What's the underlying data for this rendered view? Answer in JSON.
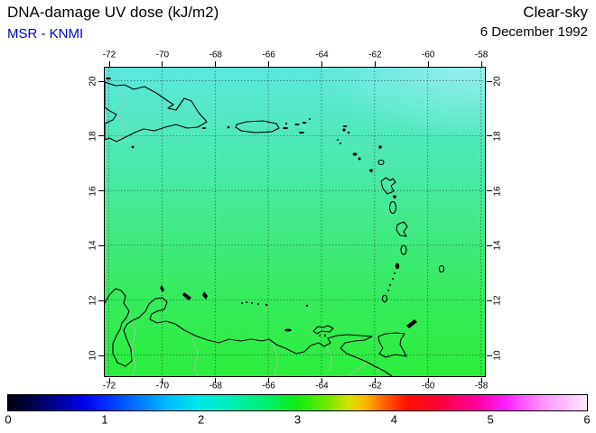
{
  "header": {
    "title": "DNA-damage UV dose (kJ/m2)",
    "source": "MSR - KNMI",
    "condition": "Clear-sky",
    "date": "6 December 1992"
  },
  "axes": {
    "lon_labels": [
      "-72",
      "-70",
      "-68",
      "-66",
      "-64",
      "-62",
      "-60",
      "-58"
    ],
    "lat_labels": [
      "20",
      "18",
      "16",
      "14",
      "12",
      "10"
    ]
  },
  "colorbar": {
    "tick_labels": [
      "0",
      "1",
      "2",
      "3",
      "4",
      "5",
      "6"
    ],
    "stops": [
      {
        "p": 0,
        "c": "#000010"
      },
      {
        "p": 3,
        "c": "#00003a"
      },
      {
        "p": 8,
        "c": "#000090"
      },
      {
        "p": 13,
        "c": "#0000e8"
      },
      {
        "p": 17,
        "c": "#0030ff"
      },
      {
        "p": 23,
        "c": "#0080ff"
      },
      {
        "p": 28,
        "c": "#00c0ff"
      },
      {
        "p": 33,
        "c": "#00e8e8"
      },
      {
        "p": 39,
        "c": "#00ecb0"
      },
      {
        "p": 45,
        "c": "#00ee6a"
      },
      {
        "p": 50,
        "c": "#10ee10"
      },
      {
        "p": 55,
        "c": "#70e800"
      },
      {
        "p": 59,
        "c": "#d8e000"
      },
      {
        "p": 62,
        "c": "#ffb000"
      },
      {
        "p": 65,
        "c": "#ff6000"
      },
      {
        "p": 69,
        "c": "#ff1000"
      },
      {
        "p": 75,
        "c": "#ff0040"
      },
      {
        "p": 81,
        "c": "#ff00a0"
      },
      {
        "p": 86,
        "c": "#ff20ff"
      },
      {
        "p": 92,
        "c": "#ff90ff"
      },
      {
        "p": 100,
        "c": "#ffe8ff"
      }
    ]
  },
  "map": {
    "field_gradient": [
      {
        "p": 0,
        "c": "#5be7da"
      },
      {
        "p": 35,
        "c": "#49e9a8"
      },
      {
        "p": 70,
        "c": "#37ec62"
      },
      {
        "p": 100,
        "c": "#2bee3c"
      }
    ]
  },
  "colors": {
    "source_text": "#0000cc",
    "coastline": "#000000",
    "borders": "#b8b8b8"
  }
}
